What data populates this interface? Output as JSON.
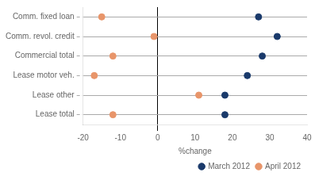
{
  "chart_data": {
    "type": "dot",
    "orientation": "horizontal",
    "xlabel": "%change",
    "categories": [
      "Comm. fixed loan",
      "Comm. revol. credit",
      "Commercial total",
      "Lease motor veh.",
      "Lease other",
      "Lease total"
    ],
    "series": [
      {
        "name": "March 2012",
        "color": "#1a3a6b",
        "marker": "circle",
        "values": [
          27,
          32,
          28,
          24,
          18,
          18
        ]
      },
      {
        "name": "April 2012",
        "color": "#e8956a",
        "marker": "circle",
        "values": [
          -15,
          -1,
          -12,
          -17,
          11,
          -12
        ]
      }
    ],
    "xlim": [
      -20,
      40
    ],
    "xticks": [
      -20,
      -10,
      0,
      10,
      20,
      30,
      40
    ],
    "grid": "y",
    "legend": "lower right"
  }
}
